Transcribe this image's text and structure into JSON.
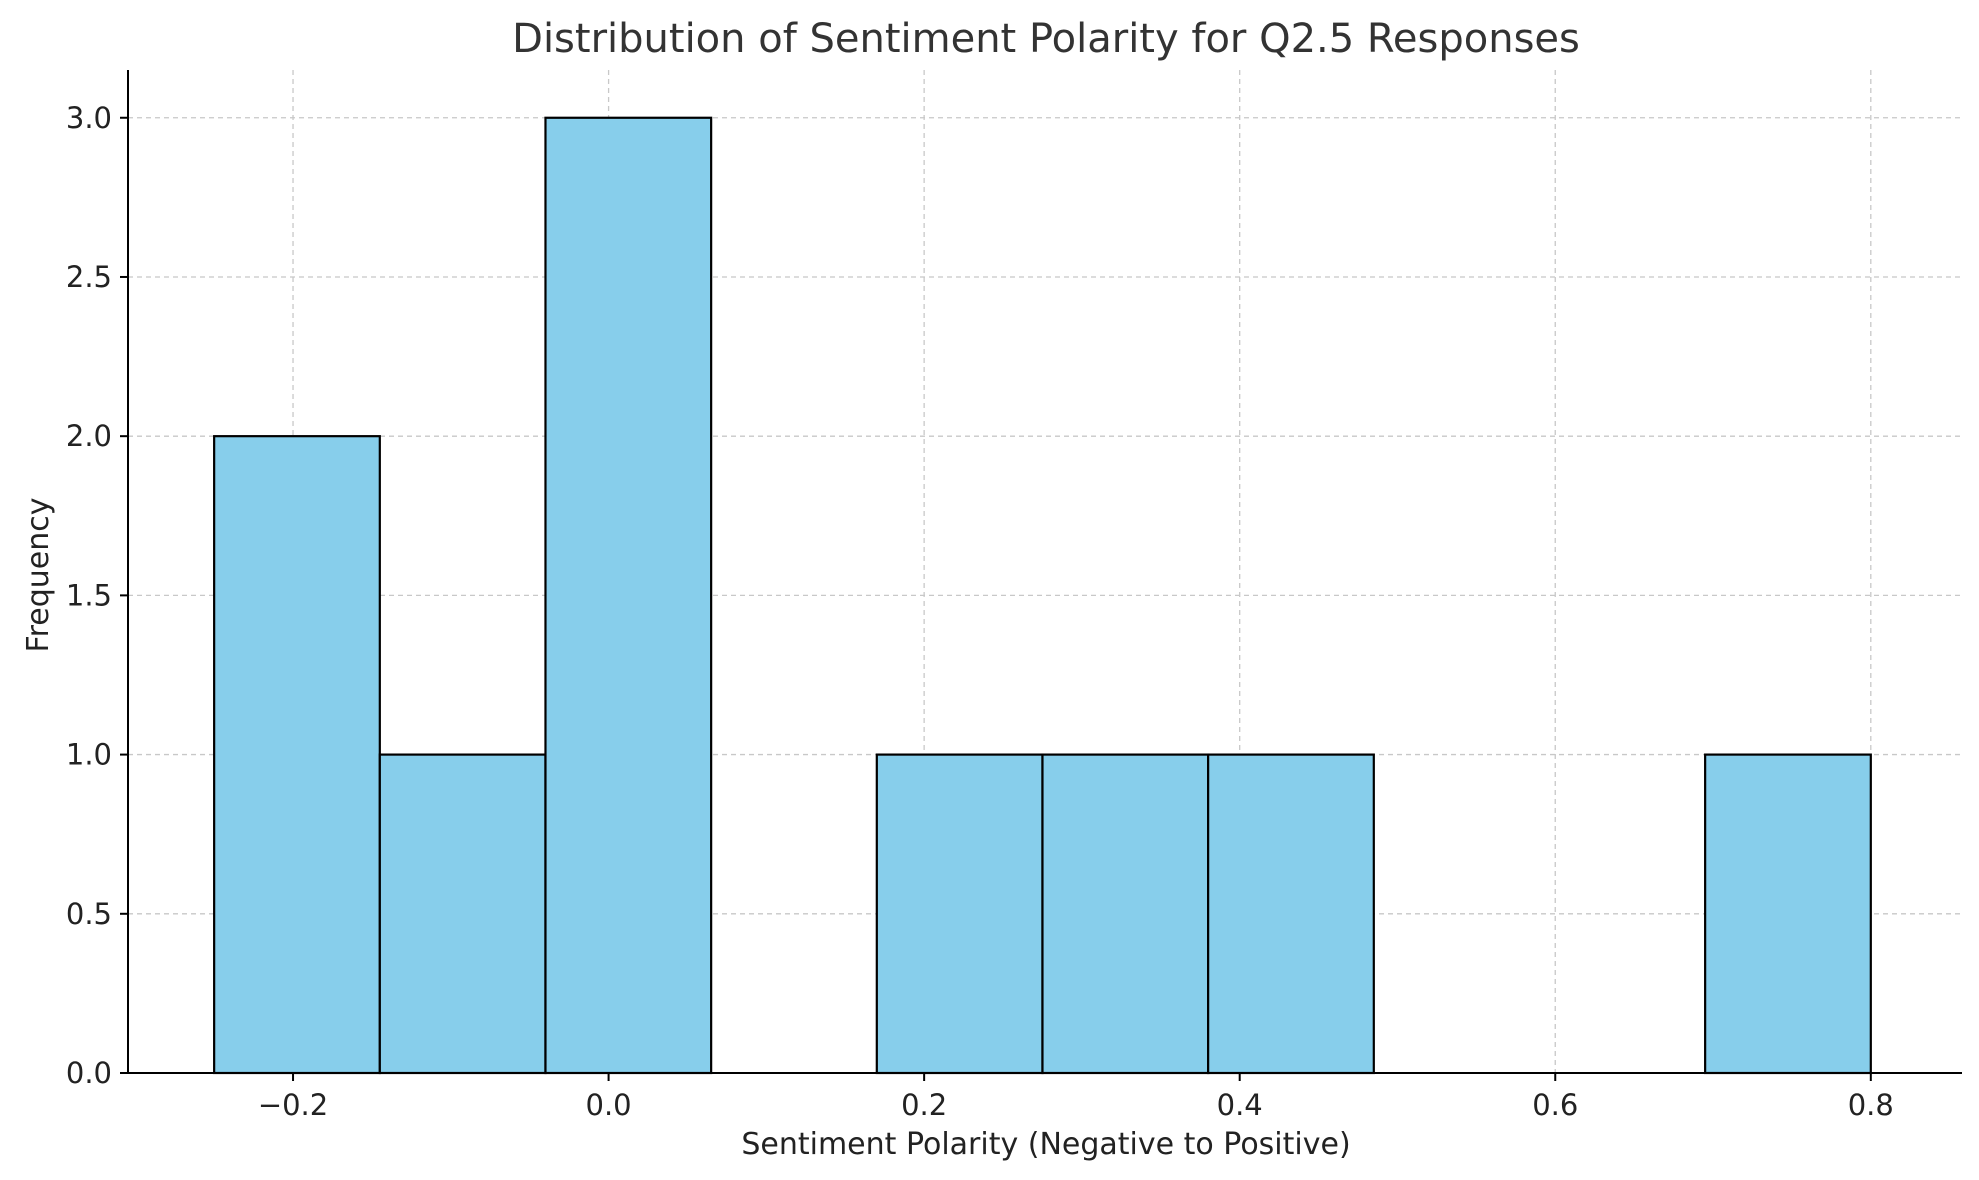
{
  "chart_data": {
    "type": "bar",
    "title": "Distribution of Sentiment Polarity for Q2.5 Responses",
    "xlabel": "Sentiment Polarity (Negative to Positive)",
    "ylabel": "Frequency",
    "xlim": [
      -0.3046,
      0.8578
    ],
    "ylim": [
      0,
      3.15
    ],
    "x_ticks": [
      -0.2,
      0.0,
      0.2,
      0.4,
      0.6,
      0.8
    ],
    "x_tick_labels": [
      "−0.2",
      "0.0",
      "0.2",
      "0.4",
      "0.6",
      "0.8"
    ],
    "y_ticks": [
      0.0,
      0.5,
      1.0,
      1.5,
      2.0,
      2.5,
      3.0
    ],
    "y_tick_labels": [
      "0.0",
      "0.5",
      "1.0",
      "1.5",
      "2.0",
      "2.5",
      "3.0"
    ],
    "bins": [
      {
        "x0": -0.25,
        "x1": -0.145,
        "value": 2
      },
      {
        "x0": -0.145,
        "x1": -0.04,
        "value": 1
      },
      {
        "x0": -0.04,
        "x1": 0.065,
        "value": 3
      },
      {
        "x0": 0.065,
        "x1": 0.17,
        "value": 0
      },
      {
        "x0": 0.17,
        "x1": 0.275,
        "value": 1
      },
      {
        "x0": 0.275,
        "x1": 0.38,
        "value": 1
      },
      {
        "x0": 0.38,
        "x1": 0.485,
        "value": 1
      },
      {
        "x0": 0.485,
        "x1": 0.59,
        "value": 0
      },
      {
        "x0": 0.59,
        "x1": 0.695,
        "value": 0
      },
      {
        "x0": 0.695,
        "x1": 0.8,
        "value": 1
      }
    ],
    "grid": true,
    "colors": {
      "bar_fill": "#87ceeb",
      "bar_edge": "#000000",
      "grid": "#c8c8c8",
      "axis": "#000000",
      "title": "#333333"
    }
  }
}
